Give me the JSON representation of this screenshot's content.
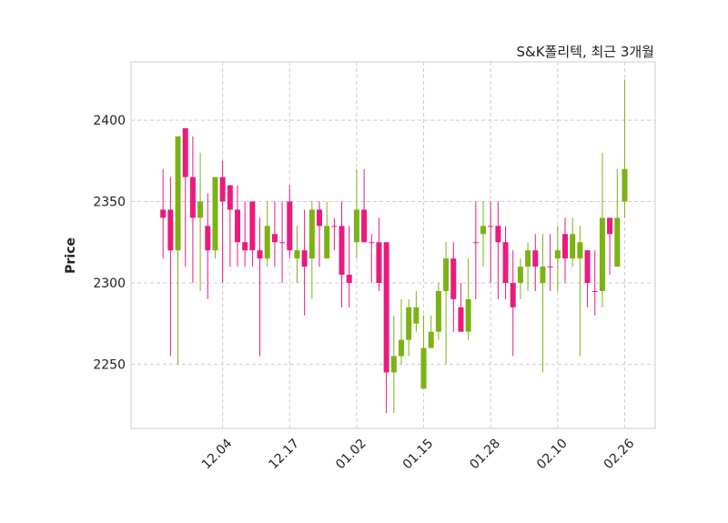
{
  "chart_data": {
    "type": "candlestick",
    "title": "S&K폴리텍, 최근 3개월",
    "xlabel": "",
    "ylabel": "Price",
    "ylim": [
      2210.6,
      2435.8
    ],
    "xlim": [
      -4.3,
      66.1
    ],
    "grid": true,
    "yticks": [
      2250,
      2300,
      2350,
      2400
    ],
    "xticks": [
      {
        "index": 8,
        "label": "12.04"
      },
      {
        "index": 17,
        "label": "12.17"
      },
      {
        "index": 26,
        "label": "01.02"
      },
      {
        "index": 35,
        "label": "01.15"
      },
      {
        "index": 44,
        "label": "01.28"
      },
      {
        "index": 53,
        "label": "02.10"
      },
      {
        "index": 62,
        "label": "02.26"
      }
    ],
    "colors": {
      "up": "#7bb313",
      "down": "#ec1a7e",
      "grid": "#cccccc",
      "frame": "#dddddd"
    },
    "ohlc": [
      [
        2345,
        2370,
        2315,
        2340
      ],
      [
        2345,
        2365,
        2255,
        2320
      ],
      [
        2320,
        2390,
        2250,
        2390
      ],
      [
        2395,
        2395,
        2310,
        2365
      ],
      [
        2365,
        2390,
        2300,
        2340
      ],
      [
        2340,
        2380,
        2295,
        2350
      ],
      [
        2335,
        2355,
        2290,
        2320
      ],
      [
        2320,
        2365,
        2315,
        2365
      ],
      [
        2365,
        2375,
        2300,
        2350
      ],
      [
        2360,
        2360,
        2310,
        2345
      ],
      [
        2345,
        2360,
        2310,
        2325
      ],
      [
        2325,
        2350,
        2310,
        2320
      ],
      [
        2350,
        2350,
        2310,
        2320
      ],
      [
        2320,
        2340,
        2255,
        2315
      ],
      [
        2315,
        2350,
        2310,
        2335
      ],
      [
        2330,
        2350,
        2310,
        2325
      ],
      [
        2325,
        2350,
        2300,
        2325
      ],
      [
        2350,
        2360,
        2315,
        2320
      ],
      [
        2315,
        2335,
        2300,
        2320
      ],
      [
        2320,
        2345,
        2280,
        2310
      ],
      [
        2315,
        2350,
        2290,
        2345
      ],
      [
        2345,
        2350,
        2310,
        2335
      ],
      [
        2315,
        2350,
        2315,
        2335
      ],
      [
        2335,
        2340,
        2320,
        2335
      ],
      [
        2335,
        2350,
        2285,
        2305
      ],
      [
        2305,
        2335,
        2285,
        2300
      ],
      [
        2325,
        2370,
        2315,
        2345
      ],
      [
        2345,
        2370,
        2325,
        2325
      ],
      [
        2325,
        2330,
        2300,
        2325
      ],
      [
        2325,
        2340,
        2295,
        2300
      ],
      [
        2325,
        2325,
        2220,
        2245
      ],
      [
        2245,
        2280,
        2220,
        2255
      ],
      [
        2255,
        2290,
        2250,
        2265
      ],
      [
        2265,
        2290,
        2255,
        2285
      ],
      [
        2275,
        2295,
        2270,
        2285
      ],
      [
        2235,
        2280,
        2235,
        2260
      ],
      [
        2260,
        2280,
        2260,
        2270
      ],
      [
        2270,
        2300,
        2265,
        2295
      ],
      [
        2295,
        2325,
        2250,
        2315
      ],
      [
        2315,
        2325,
        2270,
        2290
      ],
      [
        2285,
        2300,
        2270,
        2270
      ],
      [
        2270,
        2315,
        2265,
        2290
      ],
      [
        2325,
        2350,
        2290,
        2325
      ],
      [
        2330,
        2350,
        2310,
        2335
      ],
      [
        2335,
        2350,
        2300,
        2335
      ],
      [
        2335,
        2350,
        2290,
        2325
      ],
      [
        2325,
        2335,
        2290,
        2300
      ],
      [
        2300,
        2320,
        2255,
        2285
      ],
      [
        2300,
        2315,
        2290,
        2310
      ],
      [
        2310,
        2325,
        2295,
        2320
      ],
      [
        2320,
        2330,
        2295,
        2310
      ],
      [
        2300,
        2330,
        2245,
        2310
      ],
      [
        2310,
        2330,
        2295,
        2310
      ],
      [
        2315,
        2335,
        2295,
        2320
      ],
      [
        2330,
        2340,
        2300,
        2315
      ],
      [
        2315,
        2340,
        2310,
        2330
      ],
      [
        2315,
        2335,
        2255,
        2325
      ],
      [
        2320,
        2320,
        2285,
        2300
      ],
      [
        2295,
        2320,
        2280,
        2295
      ],
      [
        2295,
        2380,
        2285,
        2340
      ],
      [
        2340,
        2340,
        2305,
        2330
      ],
      [
        2310,
        2370,
        2310,
        2340
      ],
      [
        2350,
        2425,
        2340,
        2370
      ]
    ]
  }
}
